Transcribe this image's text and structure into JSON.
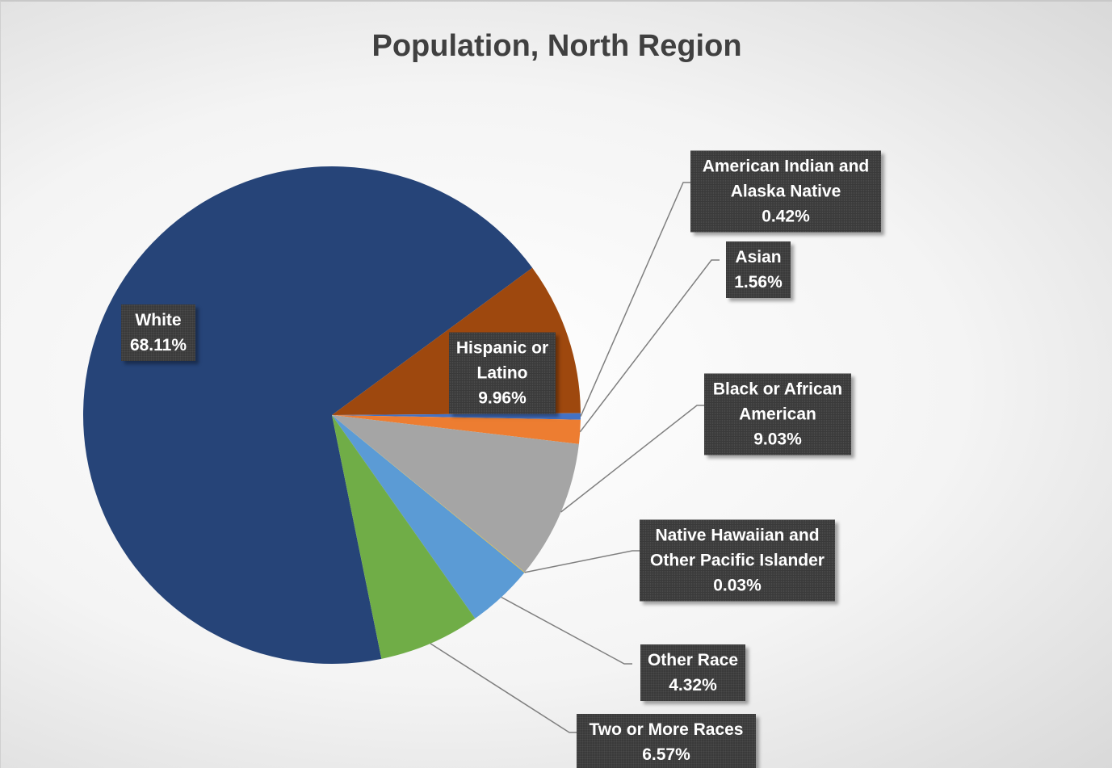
{
  "chart_data": {
    "type": "pie",
    "title": "Population, North Region",
    "categories": [
      "White",
      "Hispanic or Latino",
      "American Indian and Alaska Native",
      "Asian",
      "Black or African American",
      "Native Hawaiian and Other Pacific Islander",
      "Other Race",
      "Two or More Races"
    ],
    "values": [
      68.11,
      9.96,
      0.42,
      1.56,
      9.03,
      0.03,
      4.32,
      6.57
    ],
    "value_labels": [
      "68.11%",
      "9.96%",
      "0.42%",
      "1.56%",
      "9.03%",
      "0.03%",
      "4.32%",
      "6.57%"
    ],
    "colors": [
      "#264478",
      "#9e480e",
      "#4472c4",
      "#ed7d31",
      "#a5a5a5",
      "#ffc000",
      "#5b9bd5",
      "#70ad47"
    ]
  }
}
